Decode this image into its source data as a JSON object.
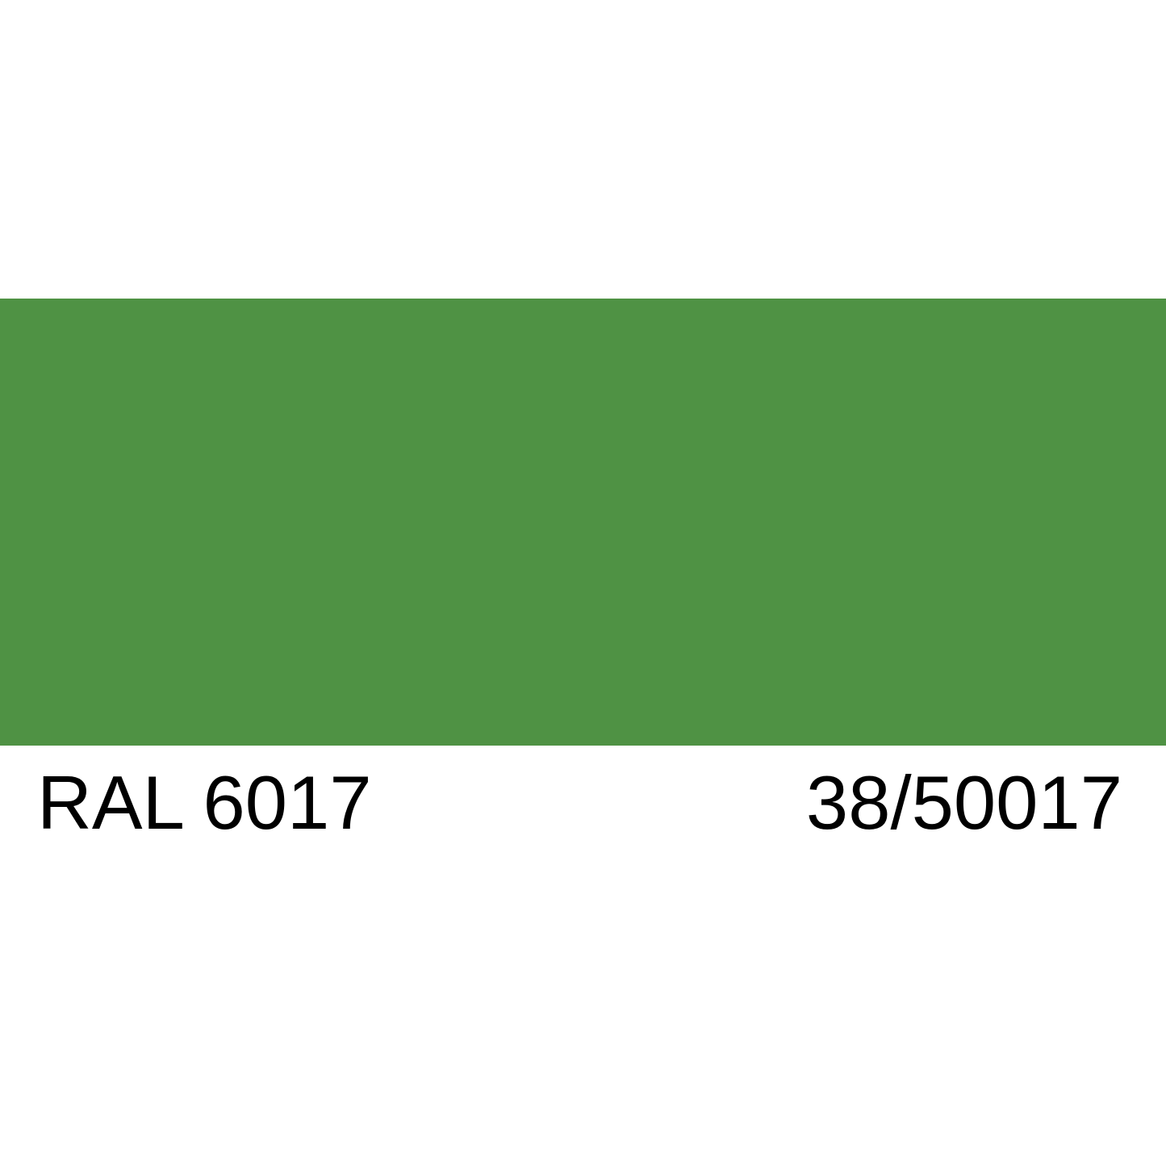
{
  "swatch": {
    "color": "#4f9244"
  },
  "labels": {
    "ral_code": "RAL 6017",
    "alt_code": "38/50017"
  }
}
